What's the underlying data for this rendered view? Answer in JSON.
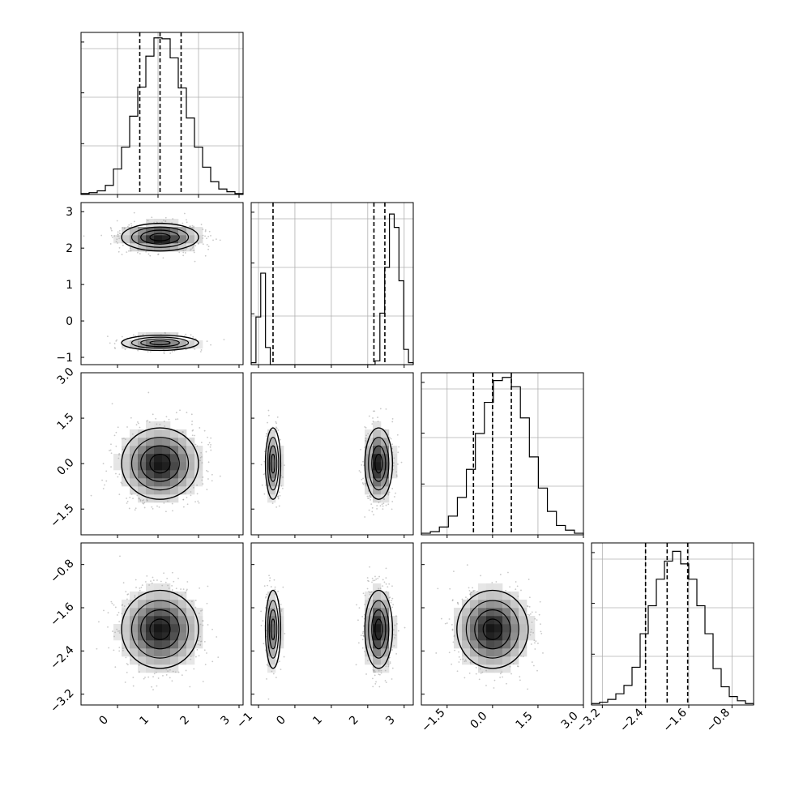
{
  "chart_data": {
    "type": "corner",
    "parameters": [
      {
        "name": "",
        "range": [
          -0.9,
          3.1
        ],
        "ticks": [
          "0",
          "1",
          "2",
          "3"
        ],
        "tick_values": [
          0,
          1,
          2,
          3
        ],
        "quantiles": [
          0.55,
          1.05,
          1.57
        ]
      },
      {
        "name": "",
        "range": [
          -1.2,
          3.25
        ],
        "ticks": [
          "−1",
          "0",
          "1",
          "2",
          "3"
        ],
        "tick_values": [
          -1,
          0,
          1,
          2,
          3
        ],
        "quantiles": [
          -0.6,
          2.17,
          2.47
        ]
      },
      {
        "name": "",
        "range": [
          -2.35,
          3.0
        ],
        "ticks": [
          "−1.5",
          "0.0",
          "1.5",
          "3.0"
        ],
        "tick_values": [
          -1.5,
          0,
          1.5,
          3.0
        ],
        "quantiles": [
          -0.63,
          0.0,
          0.62
        ]
      },
      {
        "name": "",
        "range": [
          -3.4,
          -0.4
        ],
        "ticks": [
          "−3.2",
          "−2.4",
          "−1.6",
          "−0.8"
        ],
        "tick_values": [
          -3.2,
          -2.4,
          -1.6,
          -0.8
        ],
        "quantiles": [
          -2.4,
          -2.0,
          -1.62
        ]
      }
    ],
    "histograms": [
      {
        "counts": [
          1,
          2,
          4,
          10,
          28,
          52,
          86,
          118,
          152,
          172,
          171,
          150,
          117,
          84,
          52,
          30,
          14,
          6,
          3,
          1
        ],
        "ymax": 178
      },
      {
        "counts": [
          1,
          25,
          48,
          9,
          0,
          0,
          0,
          0,
          0,
          0,
          0,
          0,
          0,
          0,
          0,
          0,
          0,
          0,
          0,
          0,
          0,
          0,
          0,
          0,
          0,
          0,
          2,
          27,
          51,
          79,
          72,
          44,
          8,
          1
        ],
        "ymax": 85
      },
      {
        "counts": [
          1,
          2,
          5,
          12,
          24,
          42,
          65,
          85,
          99,
          101,
          95,
          75,
          50,
          30,
          15,
          6,
          3,
          1
        ],
        "ymax": 104
      },
      {
        "counts": [
          1,
          2,
          4,
          8,
          14,
          27,
          51,
          71,
          90,
          103,
          110,
          101,
          90,
          71,
          51,
          26,
          13,
          6,
          3,
          1
        ],
        "ymax": 116
      }
    ],
    "grid": true,
    "show_datapoints": true,
    "contour_levels": [
      "0.5σ",
      "1σ",
      "1.5σ",
      "2σ"
    ]
  }
}
